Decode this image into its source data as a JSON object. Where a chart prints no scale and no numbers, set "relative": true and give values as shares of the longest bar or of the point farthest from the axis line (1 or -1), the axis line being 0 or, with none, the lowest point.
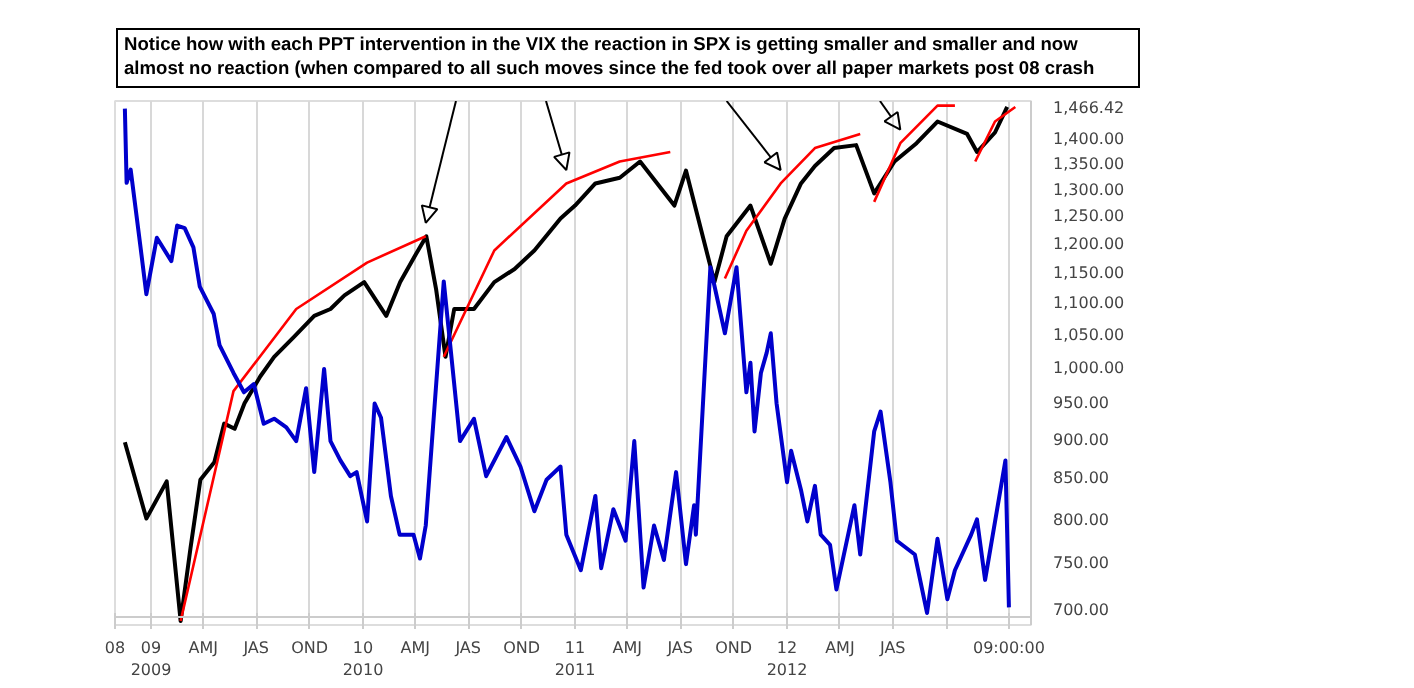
{
  "chart_data": [
    {
      "type": "line",
      "title": "Notice how with each PPT intervention in the VIX the reaction in SPX is getting smaller and smaller and now almost no reaction (when compared to all such moves since the fed took over all paper markets post 08 crash",
      "log": "y",
      "grid": "x",
      "tick_labels": "y",
      "xlim": [
        "2008-10-31",
        "2013-02-24"
      ],
      "ylim": [
        684,
        1479
      ],
      "xticks": [
        {
          "value": "2008-10-31",
          "label": null
        },
        {
          "value": "2009-01-01",
          "label": null
        },
        {
          "value": "2009-04-01",
          "label": null
        },
        {
          "value": "2009-07-01",
          "label": null
        },
        {
          "value": "2009-10-01",
          "label": null
        },
        {
          "value": "2010-01-01",
          "label": null
        },
        {
          "value": "2010-04-01",
          "label": null
        },
        {
          "value": "2010-07-01",
          "label": null
        },
        {
          "value": "2010-10-01",
          "label": null
        },
        {
          "value": "2011-01-01",
          "label": null
        },
        {
          "value": "2011-04-01",
          "label": null
        },
        {
          "value": "2011-07-01",
          "label": null
        },
        {
          "value": "2011-10-01",
          "label": null
        },
        {
          "value": "2012-01-01",
          "label": null
        },
        {
          "value": "2012-04-01",
          "label": null
        },
        {
          "value": "2012-07-01",
          "label": null
        },
        {
          "value": "2012-10-01",
          "label": null
        },
        {
          "value": "2013-01-17",
          "label": null
        }
      ],
      "yticks": [
        {
          "value": 700,
          "label": "700.00"
        },
        {
          "value": 750,
          "label": "750.00"
        },
        {
          "value": 800,
          "label": "800.00"
        },
        {
          "value": 850,
          "label": "850.00"
        },
        {
          "value": 900,
          "label": "900.00"
        },
        {
          "value": 950,
          "label": "950.00"
        },
        {
          "value": 1000,
          "label": "1,000.00"
        },
        {
          "value": 1050,
          "label": "1,050.00"
        },
        {
          "value": 1100,
          "label": "1,100.00"
        },
        {
          "value": 1150,
          "label": "1,150.00"
        },
        {
          "value": 1200,
          "label": "1,200.00"
        },
        {
          "value": 1250,
          "label": "1,250.00"
        },
        {
          "value": 1300,
          "label": "1,300.00"
        },
        {
          "value": 1350,
          "label": "1,350.00"
        },
        {
          "value": 1400,
          "label": "1,400.00"
        },
        {
          "value": 1466.42,
          "label": "1,466.42"
        }
      ],
      "series": [
        {
          "color": "#000000",
          "x": [
            "2008-11-17",
            "2008-12-24",
            "2009-01-28",
            "2009-02-21",
            "2009-03-10",
            "2009-03-27",
            "2009-04-20",
            "2009-05-07",
            "2009-05-25",
            "2009-06-11",
            "2009-07-08",
            "2009-08-01",
            "2009-09-05",
            "2009-10-09",
            "2009-11-06",
            "2009-11-30",
            "2010-01-03",
            "2010-02-10",
            "2010-03-06",
            "2010-03-31",
            "2010-04-20",
            "2010-05-07",
            "2010-05-23",
            "2010-06-07",
            "2010-07-11",
            "2010-08-15",
            "2010-09-19",
            "2010-10-23",
            "2010-12-07",
            "2011-01-01",
            "2011-02-05",
            "2011-03-19",
            "2011-04-23",
            "2011-06-21",
            "2011-07-11",
            "2011-08-29",
            "2011-09-19",
            "2011-10-30",
            "2011-12-04",
            "2011-12-28",
            "2012-01-25",
            "2012-02-18",
            "2012-03-22",
            "2012-04-29",
            "2012-05-30",
            "2012-07-04",
            "2012-08-11",
            "2012-09-16",
            "2012-11-06",
            "2012-11-23",
            "2012-12-24",
            "2013-01-14"
          ],
          "values": [
            895,
            800,
            845,
            688,
            766,
            847,
            869,
            920,
            913,
            948,
            986,
            1015,
            1046,
            1078,
            1089,
            1111,
            1133,
            1078,
            1133,
            1177,
            1212,
            1120,
            1015,
            1089,
            1089,
            1133,
            1155,
            1187,
            1244,
            1268,
            1310,
            1321,
            1353,
            1268,
            1335,
            1133,
            1212,
            1268,
            1164,
            1244,
            1310,
            1344,
            1380,
            1386,
            1291,
            1353,
            1390,
            1435,
            1409,
            1372,
            1412,
            1466.42
          ]
        },
        {
          "color": "#ff0000",
          "x": [
            "2009-02-21",
            "2009-05-23",
            "2009-09-08",
            "2010-01-08",
            "2010-04-19"
          ],
          "values": [
            688,
            965,
            1089,
            1166,
            1212
          ]
        },
        {
          "color": "#ff0000",
          "x": [
            "2010-05-20",
            "2010-08-15",
            "2010-12-17",
            "2011-03-19",
            "2011-06-14"
          ],
          "values": [
            1015,
            1187,
            1310,
            1353,
            1372
          ]
        },
        {
          "color": "#ff0000",
          "x": [
            "2011-09-16",
            "2011-10-23",
            "2011-12-21",
            "2012-02-18",
            "2012-05-06"
          ],
          "values": [
            1139,
            1222,
            1310,
            1380,
            1409
          ]
        },
        {
          "color": "#ff0000",
          "x": [
            "2012-05-30",
            "2012-07-14",
            "2012-09-16",
            "2012-10-16"
          ],
          "values": [
            1275,
            1390,
            1469,
            1469
          ]
        },
        {
          "color": "#ff0000",
          "x": [
            "2012-11-20",
            "2012-12-24",
            "2013-01-28"
          ],
          "values": [
            1353,
            1435,
            1466
          ]
        }
      ]
    },
    {
      "type": "line",
      "relative": true,
      "tick_labels": "x",
      "xlim": [
        "2008-10-31",
        "2013-02-24"
      ],
      "xticks": [
        {
          "value": "2008-10-31",
          "label": "08"
        },
        {
          "value": "2009-01-01",
          "label": "09\n2009"
        },
        {
          "value": "2009-04-01",
          "label": "AMJ"
        },
        {
          "value": "2009-07-01",
          "label": "JAS"
        },
        {
          "value": "2009-10-01",
          "label": "OND"
        },
        {
          "value": "2010-01-01",
          "label": "10\n2010"
        },
        {
          "value": "2010-04-01",
          "label": "AMJ"
        },
        {
          "value": "2010-07-01",
          "label": "JAS"
        },
        {
          "value": "2010-10-01",
          "label": "OND"
        },
        {
          "value": "2011-01-01",
          "label": "11\n2011"
        },
        {
          "value": "2011-04-01",
          "label": "AMJ"
        },
        {
          "value": "2011-07-01",
          "label": "JAS"
        },
        {
          "value": "2011-10-01",
          "label": "OND"
        },
        {
          "value": "2012-01-01",
          "label": "12\n2012"
        },
        {
          "value": "2012-04-01",
          "label": "AMJ"
        },
        {
          "value": "2012-07-01",
          "label": "JAS"
        },
        {
          "value": "2012-10-01",
          "label": null
        },
        {
          "value": "2013-01-17",
          "label": "09:00:00"
        }
      ],
      "series": [
        {
          "color": "#0000cc",
          "x": [
            "2008-11-17",
            "2008-11-20",
            "2008-11-27",
            "2008-12-14",
            "2008-12-24",
            "2009-01-11",
            "2009-02-05",
            "2009-02-15",
            "2009-02-28",
            "2009-03-15",
            "2009-03-26",
            "2009-04-19",
            "2009-04-29",
            "2009-05-23",
            "2009-06-10",
            "2009-06-27",
            "2009-07-14",
            "2009-08-01",
            "2009-08-22",
            "2009-09-08",
            "2009-09-25",
            "2009-10-09",
            "2009-10-26",
            "2009-11-06",
            "2009-11-23",
            "2009-12-10",
            "2009-12-21",
            "2010-01-08",
            "2010-01-21",
            "2010-02-01",
            "2010-02-18",
            "2010-03-05",
            "2010-03-29",
            "2010-04-09",
            "2010-04-19",
            "2010-05-20",
            "2010-06-17",
            "2010-07-11",
            "2010-08-01",
            "2010-09-05",
            "2010-09-29",
            "2010-10-23",
            "2010-11-13",
            "2010-12-07",
            "2010-12-17",
            "2011-01-11",
            "2011-02-05",
            "2011-02-15",
            "2011-03-08",
            "2011-03-29",
            "2011-04-13",
            "2011-04-29",
            "2011-05-17",
            "2011-06-03",
            "2011-06-24",
            "2011-07-11",
            "2011-07-25",
            "2011-07-28",
            "2011-08-22",
            "2011-09-16",
            "2011-10-06",
            "2011-10-23",
            "2011-10-30",
            "2011-11-06",
            "2011-11-17",
            "2011-11-27",
            "2011-12-04",
            "2011-12-14",
            "2012-01-01",
            "2012-01-08",
            "2012-01-25",
            "2012-02-05",
            "2012-02-18",
            "2012-02-28",
            "2012-03-15",
            "2012-03-26",
            "2012-04-26",
            "2012-05-06",
            "2012-05-30",
            "2012-06-10",
            "2012-06-27",
            "2012-07-08",
            "2012-08-08",
            "2012-08-29",
            "2012-09-16",
            "2012-10-03",
            "2012-10-16",
            "2012-11-13",
            "2012-11-23",
            "2012-12-07",
            "2013-01-11",
            "2013-01-17"
          ],
          "values": [
            1.0,
            0.854,
            0.88,
            0.727,
            0.635,
            0.746,
            0.7,
            0.77,
            0.765,
            0.727,
            0.65,
            0.596,
            0.535,
            0.48,
            0.442,
            0.458,
            0.38,
            0.39,
            0.373,
            0.346,
            0.45,
            0.285,
            0.488,
            0.346,
            0.308,
            0.277,
            0.285,
            0.188,
            0.42,
            0.392,
            0.238,
            0.162,
            0.162,
            0.115,
            0.18,
            0.66,
            0.346,
            0.39,
            0.277,
            0.354,
            0.296,
            0.208,
            0.27,
            0.296,
            0.162,
            0.092,
            0.238,
            0.096,
            0.212,
            0.15,
            0.346,
            0.058,
            0.18,
            0.112,
            0.285,
            0.104,
            0.22,
            0.162,
            0.688,
            0.558,
            0.688,
            0.442,
            0.5,
            0.365,
            0.48,
            0.52,
            0.558,
            0.42,
            0.265,
            0.327,
            0.25,
            0.188,
            0.258,
            0.162,
            0.142,
            0.054,
            0.22,
            0.123,
            0.365,
            0.404,
            0.265,
            0.15,
            0.123,
            0.008,
            0.154,
            0.035,
            0.092,
            0.162,
            0.192,
            0.073,
            0.308,
            0.019
          ]
        }
      ]
    }
  ]
}
